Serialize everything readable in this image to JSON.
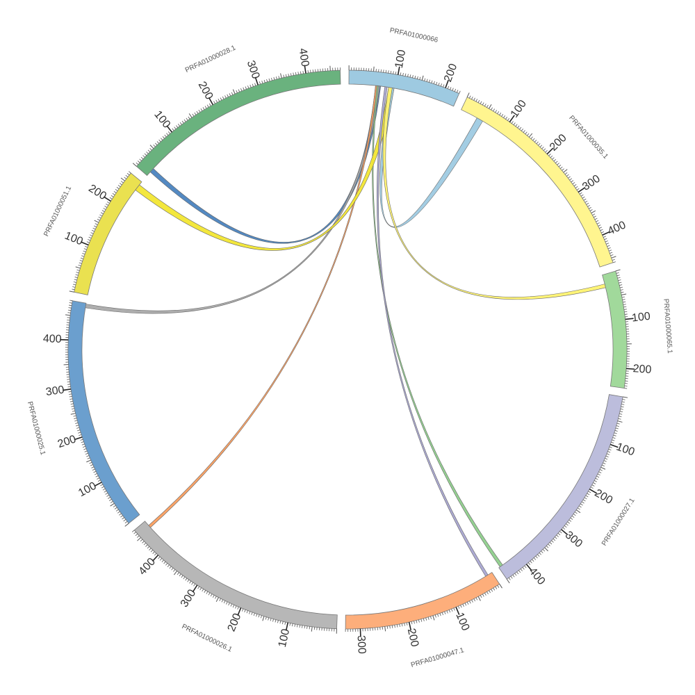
{
  "chart_data": {
    "type": "chord",
    "segments": [
      {
        "id": "PRFA01000066",
        "label": "PRFA01000066",
        "length": 230,
        "color": "#9ecae1"
      },
      {
        "id": "PRFA01000035.1",
        "label": "PRFA01000035.1",
        "length": 460,
        "color": "#fff58f"
      },
      {
        "id": "PRFA01000065.1",
        "label": "PRFA01000065.1",
        "length": 240,
        "color": "#a1d99b"
      },
      {
        "id": "PRFA01000027.1",
        "label": "PRFA01000027.1",
        "length": 450,
        "color": "#bcbddc"
      },
      {
        "id": "PRFA01000047.1",
        "label": "PRFA01000047.1",
        "length": 330,
        "color": "#fdae7b"
      },
      {
        "id": "PRFA01000026.1",
        "label": "PRFA01000026.1",
        "length": 470,
        "color": "#b7b7b7"
      },
      {
        "id": "PRFA01000025.1",
        "label": "PRFA01000025.1",
        "length": 480,
        "color": "#6b9fce"
      },
      {
        "id": "PRFA01000051.1",
        "label": "PRFA01000051.1",
        "length": 270,
        "color": "#eae150"
      },
      {
        "id": "PRFA01000028.1",
        "label": "PRFA01000028.1",
        "length": 470,
        "color": "#6ab27e"
      }
    ],
    "tick_labels": [
      "100",
      "200",
      "300",
      "400"
    ],
    "links": [
      {
        "source": "PRFA01000066",
        "s_start": 57,
        "s_end": 68,
        "target": "PRFA01000028.1",
        "t_start": 10,
        "t_end": 20,
        "color": "#4a83bf"
      },
      {
        "source": "PRFA01000066",
        "s_start": 60,
        "s_end": 66,
        "target": "PRFA01000025.1",
        "t_start": 470,
        "t_end": 478,
        "color": "#aaaaaa"
      },
      {
        "source": "PRFA01000066",
        "s_start": 57,
        "s_end": 61,
        "target": "PRFA01000026.1",
        "t_start": 452,
        "t_end": 458,
        "color": "#fd9f5f"
      },
      {
        "source": "PRFA01000066",
        "s_start": 60,
        "s_end": 63,
        "target": "PRFA01000027.1",
        "t_start": 440,
        "t_end": 447,
        "color": "#8fcf8c"
      },
      {
        "source": "PRFA01000066",
        "s_start": 85,
        "s_end": 97,
        "target": "PRFA01000051.1",
        "t_start": 248,
        "t_end": 262,
        "color": "#f2e633"
      },
      {
        "source": "PRFA01000066",
        "s_start": 88,
        "s_end": 97,
        "target": "PRFA01000035.1",
        "t_start": 38,
        "t_end": 52,
        "color": "#9ecae1"
      },
      {
        "source": "PRFA01000066",
        "s_start": 85,
        "s_end": 93,
        "target": "PRFA01000065.1",
        "t_start": 20,
        "t_end": 28,
        "color": "#fff370"
      },
      {
        "source": "PRFA01000066",
        "s_start": 77,
        "s_end": 82,
        "target": "PRFA01000047.1",
        "t_start": 10,
        "t_end": 16,
        "color": "#a9a6d2"
      }
    ]
  }
}
